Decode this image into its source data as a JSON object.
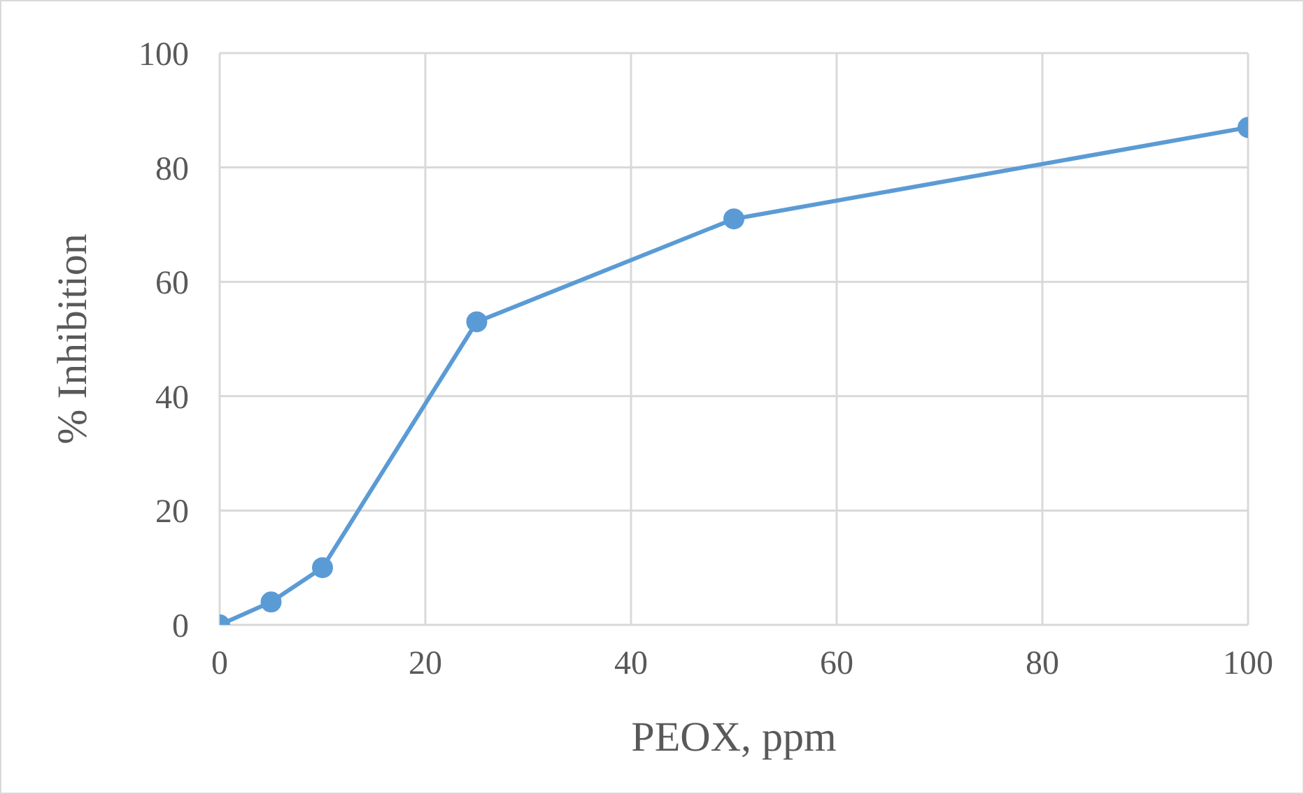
{
  "chart_data": {
    "type": "line",
    "xlabel": "PEOX, ppm",
    "ylabel": "% Inhibition",
    "x": [
      0,
      5,
      10,
      25,
      50,
      100
    ],
    "series": [
      {
        "color": "#5b9bd5",
        "values": [
          0,
          4,
          10,
          53,
          71,
          87
        ]
      }
    ],
    "xlim": [
      0,
      100
    ],
    "xticks": [
      0,
      20,
      40,
      60,
      80,
      100
    ],
    "ylim": [
      0,
      100
    ],
    "yticks": [
      0,
      20,
      40,
      60,
      80,
      100
    ],
    "grid": true,
    "marker": "circle",
    "line_style": "solid"
  }
}
